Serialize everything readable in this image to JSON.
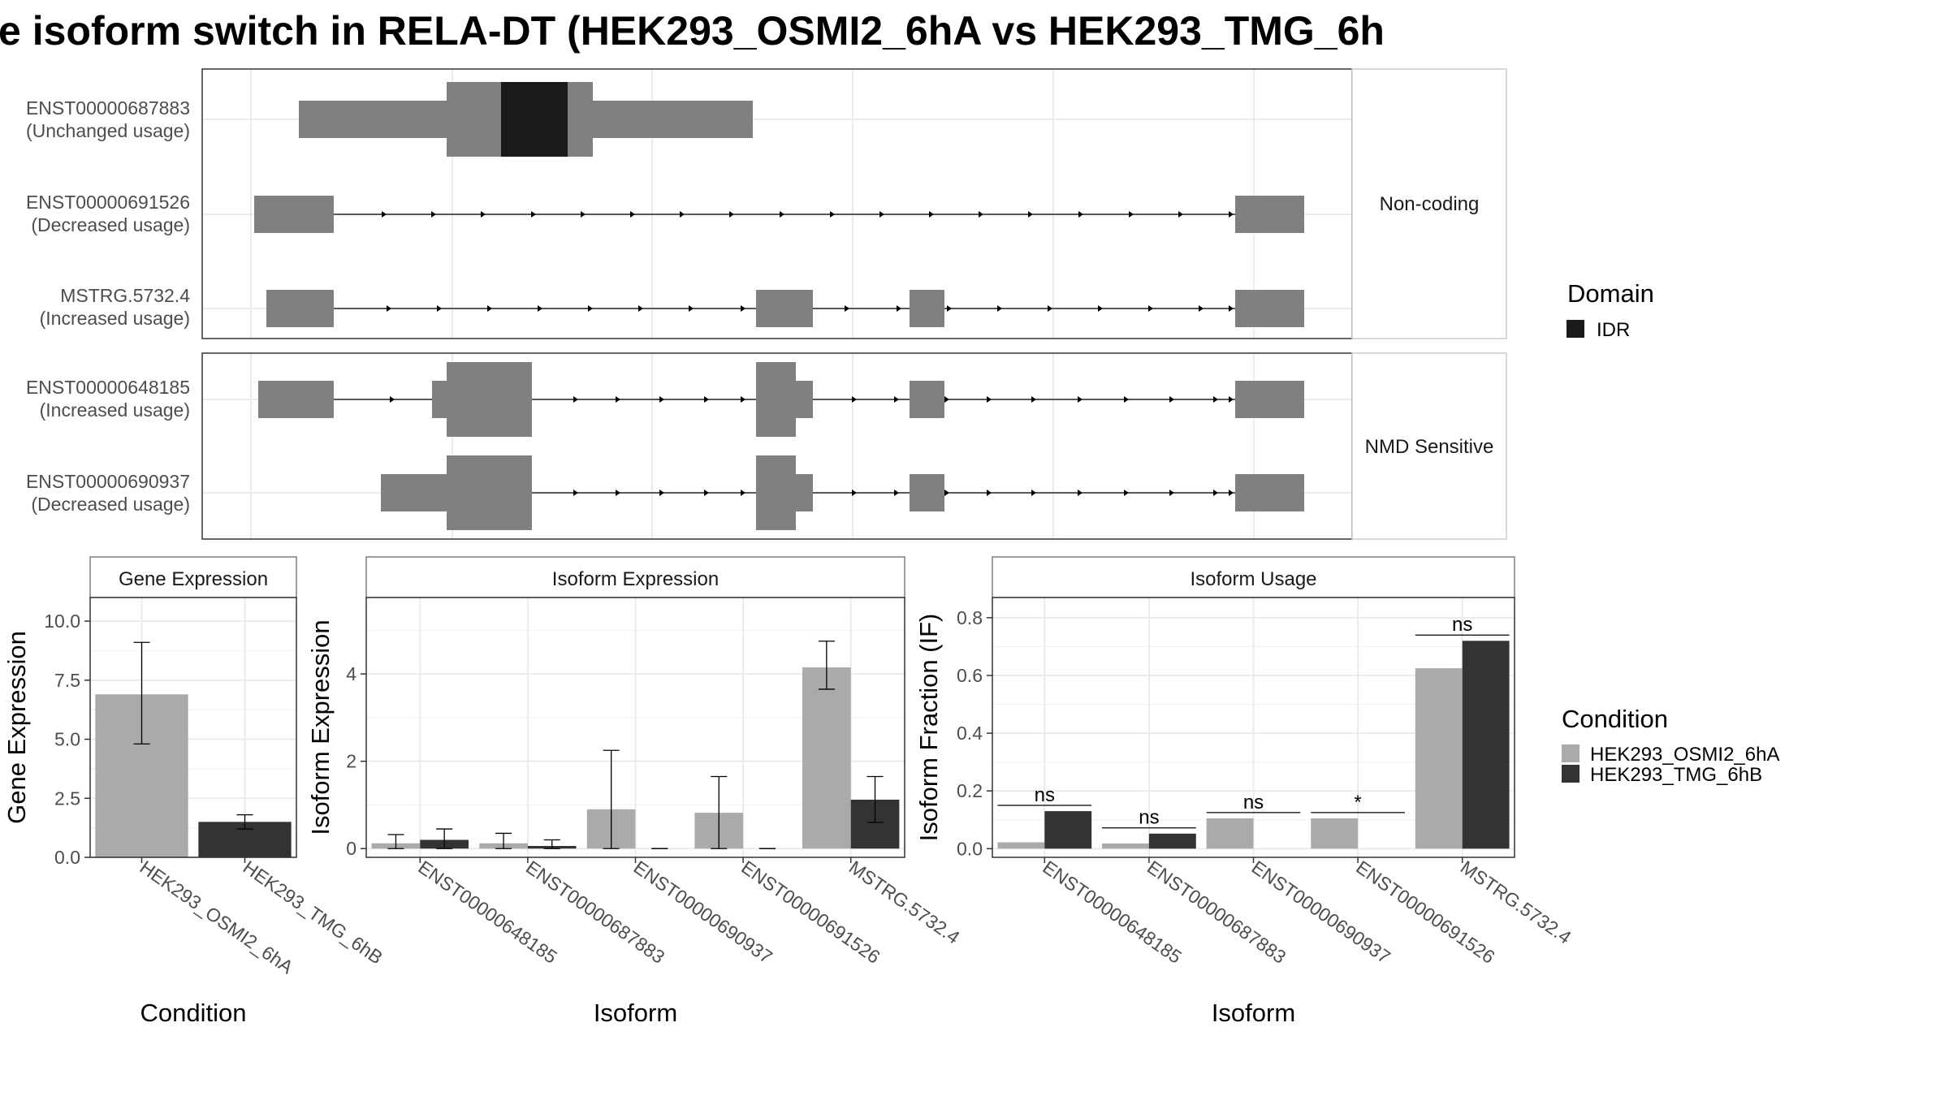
{
  "title": "e isoform switch in RELA-DT (HEK293_OSMI2_6hA vs HEK293_TMG_6h",
  "colors": {
    "exon": "#808080",
    "idr": "#1a1a1a",
    "osmi": "#aaaaaa",
    "tmg": "#333333",
    "grid": "#ebebeb",
    "strip_border": "#7f7f7f"
  },
  "structure": {
    "panels": [
      {
        "label": "Non-coding",
        "transcripts": [
          {
            "id": "ENST00000687883",
            "status": "(Unchanged usage)"
          },
          {
            "id": "ENST00000691526",
            "status": "(Decreased usage)"
          },
          {
            "id": "MSTRG.5732.4",
            "status": "(Increased usage)"
          }
        ]
      },
      {
        "label": "NMD Sensitive",
        "transcripts": [
          {
            "id": "ENST00000648185",
            "status": "(Increased usage)"
          },
          {
            "id": "ENST00000690937",
            "status": "(Decreased usage)"
          }
        ]
      }
    ],
    "domain_legend": {
      "title": "Domain",
      "items": [
        "IDR"
      ]
    }
  },
  "condition_legend": {
    "title": "Condition",
    "items": [
      "HEK293_OSMI2_6hA",
      "HEK293_TMG_6hB"
    ]
  },
  "chart_data": [
    {
      "type": "bar",
      "title": "Gene Expression",
      "xlabel": "Condition",
      "ylabel": "Gene Expression",
      "categories": [
        "HEK293_OSMI2_6hA",
        "HEK293_TMG_6hB"
      ],
      "values": [
        6.9,
        1.5
      ],
      "error": [
        [
          4.8,
          9.1
        ],
        [
          1.2,
          1.8
        ]
      ],
      "ylim": [
        0,
        11
      ],
      "yticks": [
        "0.0",
        "2.5",
        "5.0",
        "7.5",
        "10.0"
      ],
      "grid": true
    },
    {
      "type": "bar",
      "title": "Isoform Expression",
      "xlabel": "Isoform",
      "ylabel": "Isoform Expression",
      "categories": [
        "ENST00000648185",
        "ENST00000687883",
        "ENST00000690937",
        "ENST00000691526",
        "MSTRG.5732.4"
      ],
      "series": [
        {
          "name": "HEK293_OSMI2_6hA",
          "values": [
            0.12,
            0.12,
            0.9,
            0.82,
            4.15
          ],
          "error": [
            [
              0.0,
              0.32
            ],
            [
              0.0,
              0.35
            ],
            [
              0.0,
              2.25
            ],
            [
              0.0,
              1.65
            ],
            [
              3.65,
              4.75
            ]
          ]
        },
        {
          "name": "HEK293_TMG_6hB",
          "values": [
            0.2,
            0.06,
            0.0,
            0.0,
            1.12
          ],
          "error": [
            [
              0.0,
              0.45
            ],
            [
              0.0,
              0.2
            ],
            [
              0.0,
              0.0
            ],
            [
              0.0,
              0.0
            ],
            [
              0.6,
              1.65
            ]
          ]
        }
      ],
      "ylim": [
        -0.2,
        5.75
      ],
      "yticks": [
        "0",
        "2",
        "4"
      ],
      "grid": true
    },
    {
      "type": "bar",
      "title": "Isoform Usage",
      "xlabel": "Isoform",
      "ylabel": "Isoform Fraction (IF)",
      "categories": [
        "ENST00000648185",
        "ENST00000687883",
        "ENST00000690937",
        "ENST00000691526",
        "MSTRG.5732.4"
      ],
      "series": [
        {
          "name": "HEK293_OSMI2_6hA",
          "values": [
            0.022,
            0.018,
            0.105,
            0.105,
            0.625
          ]
        },
        {
          "name": "HEK293_TMG_6hB",
          "values": [
            0.13,
            0.052,
            0.0,
            0.0,
            0.72
          ]
        }
      ],
      "significance": [
        "ns",
        "ns",
        "ns",
        "*",
        "ns"
      ],
      "ylim": [
        -0.03,
        0.87
      ],
      "yticks": [
        "0.0",
        "0.2",
        "0.4",
        "0.6",
        "0.8"
      ],
      "grid": true
    }
  ]
}
